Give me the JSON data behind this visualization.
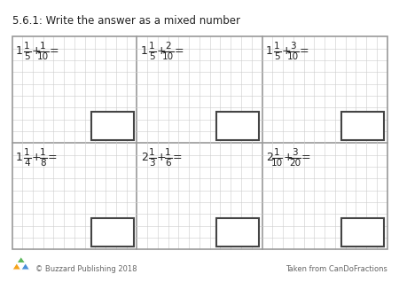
{
  "title": "5.6.1: Write the answer as a mixed number",
  "title_fontsize": 8.5,
  "background_color": "#ffffff",
  "grid_color": "#cccccc",
  "border_color": "#999999",
  "box_color": "#444444",
  "footer_left": "© Buzzard Publishing 2018",
  "footer_right": "Taken from CanDoFractions",
  "problems": [
    {
      "whole1": "1",
      "num1": "1",
      "den1": "5",
      "num2": "1",
      "den2": "10"
    },
    {
      "whole1": "1",
      "num1": "1",
      "den1": "5",
      "num2": "2",
      "den2": "10"
    },
    {
      "whole1": "1",
      "num1": "1",
      "den1": "5",
      "num2": "3",
      "den2": "10"
    },
    {
      "whole1": "1",
      "num1": "1",
      "den1": "4",
      "num2": "1",
      "den2": "8"
    },
    {
      "whole1": "2",
      "num1": "1",
      "den1": "3",
      "num2": "1",
      "den2": "6"
    },
    {
      "whole1": "2",
      "num1": "1",
      "den1": "10",
      "num2": "3",
      "den2": "20"
    }
  ],
  "grid_rows": 9,
  "grid_cols": 12,
  "logo_colors": [
    "#f5a31a",
    "#4a90d9",
    "#5cb85c"
  ],
  "footer_color": "#666666",
  "footer_fontsize": 6.0,
  "text_color": "#222222"
}
